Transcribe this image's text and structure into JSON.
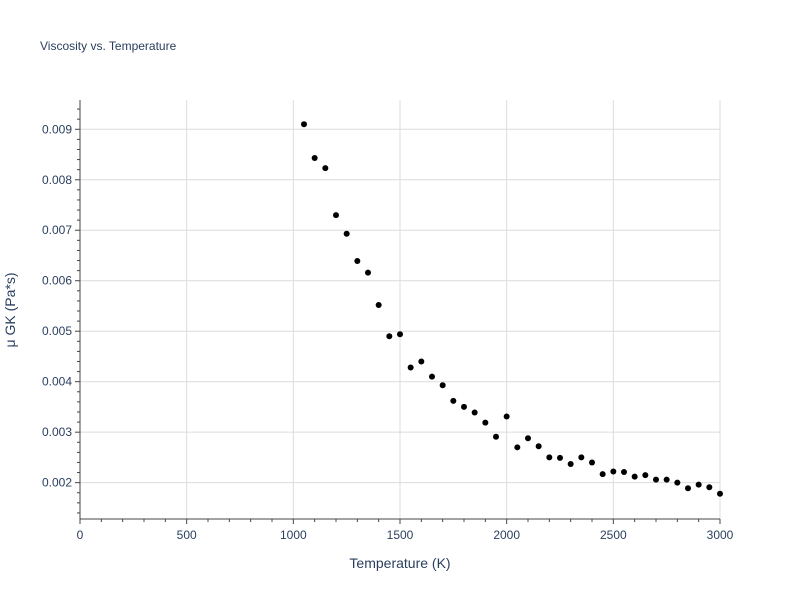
{
  "chart_data": {
    "type": "scatter",
    "title": "Viscosity vs. Temperature",
    "xlabel": "Temperature (K)",
    "ylabel": "μ GK (Pa*s)",
    "xlim": [
      0,
      3000
    ],
    "ylim": [
      0.00128,
      0.00958
    ],
    "x_ticks": [
      0,
      500,
      1000,
      1500,
      2000,
      2500,
      3000
    ],
    "x_tick_labels": [
      "0",
      "500",
      "1000",
      "1500",
      "2000",
      "2500",
      "3000"
    ],
    "y_ticks": [
      0.002,
      0.003,
      0.004,
      0.005,
      0.006,
      0.007,
      0.008,
      0.009
    ],
    "y_tick_labels": [
      "0.002",
      "0.003",
      "0.004",
      "0.005",
      "0.006",
      "0.007",
      "0.008",
      "0.009"
    ],
    "grid": true,
    "marker_color": "#000000",
    "series": [
      {
        "x": [
          1050,
          1100,
          1150,
          1200,
          1250,
          1300,
          1350,
          1400,
          1450,
          1500,
          1550,
          1600,
          1650,
          1700,
          1750,
          1800,
          1850,
          1900,
          1950,
          2000,
          2050,
          2100,
          2150,
          2200,
          2250,
          2300,
          2350,
          2400,
          2450,
          2500,
          2550,
          2600,
          2650,
          2700,
          2750,
          2800,
          2850,
          2900,
          2950,
          3000
        ],
        "y": [
          0.0091,
          0.00843,
          0.00823,
          0.0073,
          0.00693,
          0.00639,
          0.00616,
          0.00552,
          0.0049,
          0.00494,
          0.00428,
          0.0044,
          0.0041,
          0.00393,
          0.00362,
          0.0035,
          0.00339,
          0.00319,
          0.00291,
          0.00331,
          0.0027,
          0.00288,
          0.00272,
          0.0025,
          0.00249,
          0.00237,
          0.0025,
          0.0024,
          0.00217,
          0.00222,
          0.00221,
          0.00212,
          0.00215,
          0.00206,
          0.00206,
          0.002,
          0.00189,
          0.00196,
          0.00191,
          0.00178
        ]
      }
    ]
  }
}
